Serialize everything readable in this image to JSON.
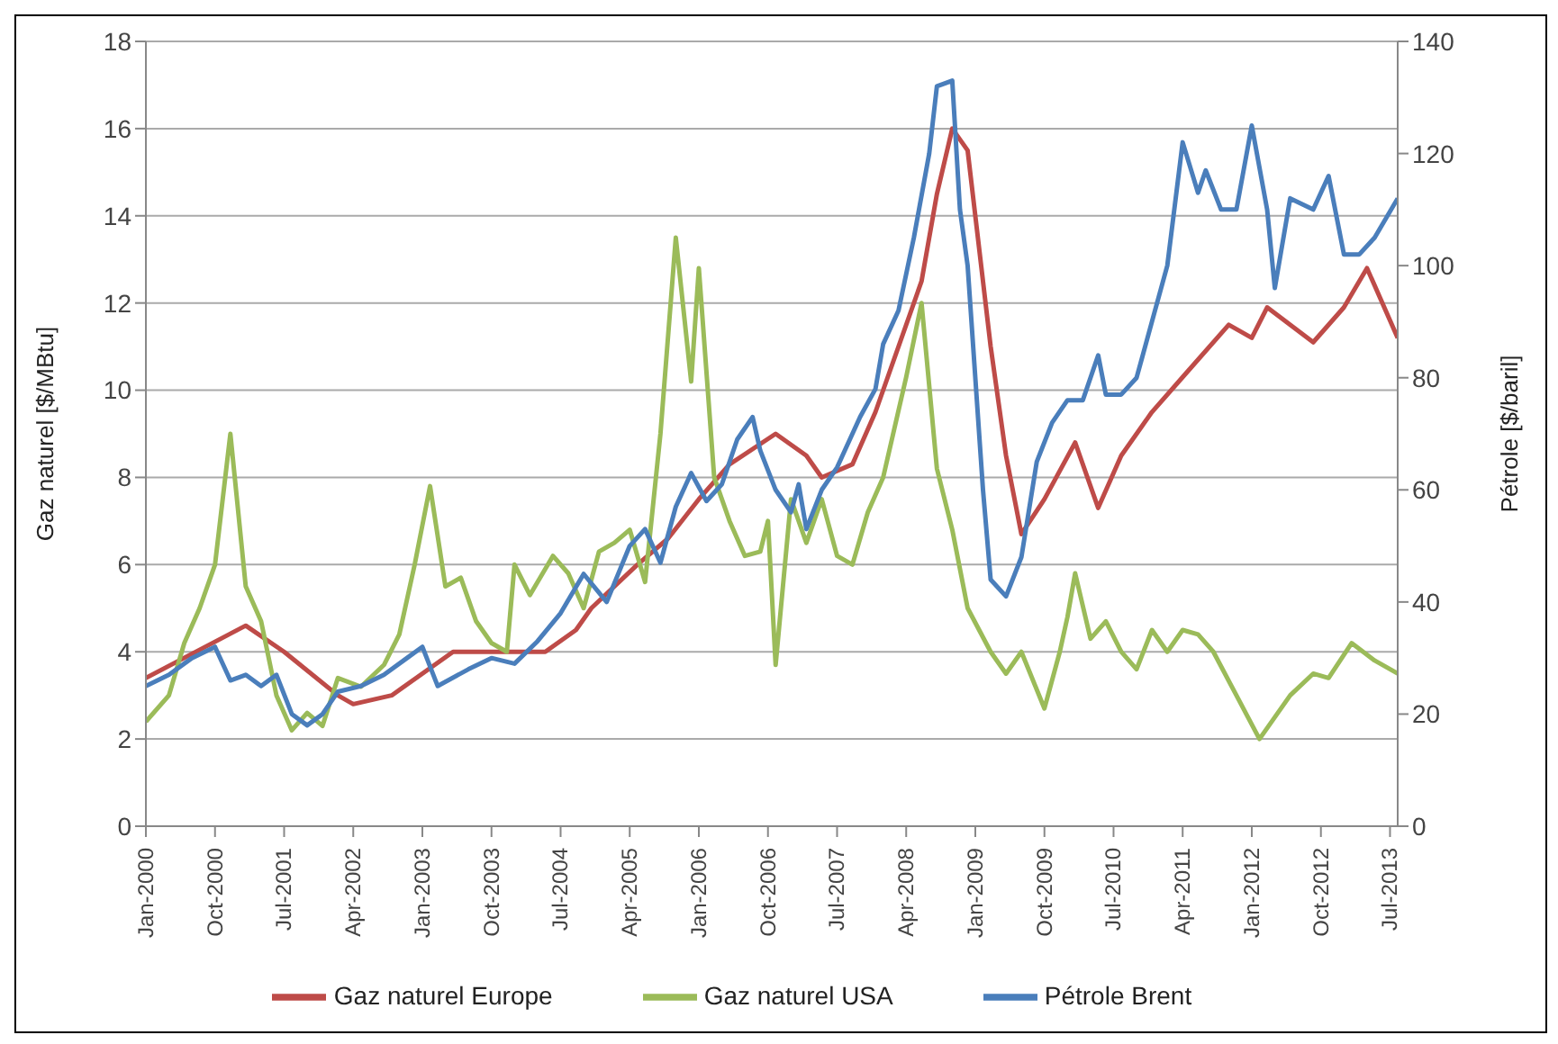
{
  "chart_data": {
    "type": "line",
    "ylabel": "Gaz naturel [$/MBtu]",
    "y2label": "Pétrole [$/baril]",
    "xlim": [
      "2000-01",
      "2013-08"
    ],
    "xticks": [
      {
        "value": "2000-01",
        "label": "Jan-2000"
      },
      {
        "value": "2000-10",
        "label": "Oct-2000"
      },
      {
        "value": "2001-07",
        "label": "Jul-2001"
      },
      {
        "value": "2002-04",
        "label": "Apr-2002"
      },
      {
        "value": "2003-01",
        "label": "Jan-2003"
      },
      {
        "value": "2003-10",
        "label": "Oct-2003"
      },
      {
        "value": "2004-07",
        "label": "Jul-2004"
      },
      {
        "value": "2005-04",
        "label": "Apr-2005"
      },
      {
        "value": "2006-01",
        "label": "Jan-2006"
      },
      {
        "value": "2006-10",
        "label": "Oct-2006"
      },
      {
        "value": "2007-07",
        "label": "Jul-2007"
      },
      {
        "value": "2008-04",
        "label": "Apr-2008"
      },
      {
        "value": "2009-01",
        "label": "Jan-2009"
      },
      {
        "value": "2009-10",
        "label": "Oct-2009"
      },
      {
        "value": "2010-07",
        "label": "Jul-2010"
      },
      {
        "value": "2011-04",
        "label": "Apr-2011"
      },
      {
        "value": "2012-01",
        "label": "Jan-2012"
      },
      {
        "value": "2012-10",
        "label": "Oct-2012"
      },
      {
        "value": "2013-07",
        "label": "Jul-2013"
      }
    ],
    "ylim": [
      0,
      18
    ],
    "yticks": [
      0,
      2,
      4,
      6,
      8,
      10,
      12,
      14,
      16,
      18
    ],
    "y2lim": [
      0,
      140
    ],
    "y2ticks": [
      0,
      20,
      40,
      60,
      80,
      100,
      120,
      140
    ],
    "grid": "y",
    "legend": "bottom",
    "marker": "none",
    "line_style": "solid",
    "series": [
      {
        "name": "Gaz naturel Europe",
        "color": "#be4b48",
        "x": [
          "2000-01",
          "2001-02",
          "2001-07",
          "2002-02",
          "2002-04",
          "2002-09",
          "2003-05",
          "2004-05",
          "2004-09",
          "2004-11",
          "2005-05",
          "2005-09",
          "2006-01",
          "2006-05",
          "2006-11",
          "2007-03",
          "2007-05",
          "2007-09",
          "2007-12",
          "2008-06",
          "2008-08",
          "2008-10",
          "2008-12",
          "2009-03",
          "2009-05",
          "2009-07",
          "2009-10",
          "2010-02",
          "2010-05",
          "2010-08",
          "2010-12",
          "2011-04",
          "2011-10",
          "2012-01",
          "2012-03",
          "2012-09",
          "2013-01",
          "2013-04",
          "2013-08"
        ],
        "values": [
          3.4,
          4.6,
          4.0,
          3.0,
          2.8,
          3.0,
          4.0,
          4.0,
          4.5,
          5.0,
          6.0,
          6.6,
          7.5,
          8.3,
          9.0,
          8.5,
          8.0,
          8.3,
          9.5,
          12.5,
          14.5,
          16.0,
          15.5,
          11.0,
          8.5,
          6.7,
          7.5,
          8.8,
          7.3,
          8.5,
          9.5,
          10.3,
          11.5,
          11.2,
          11.9,
          11.1,
          11.9,
          12.8,
          11.2
        ]
      },
      {
        "name": "Gaz naturel USA",
        "color": "#9bbb59",
        "x": [
          "2000-01",
          "2000-04",
          "2000-06",
          "2000-08",
          "2000-10",
          "2000-12",
          "2001-02",
          "2001-04",
          "2001-06",
          "2001-08",
          "2001-10",
          "2001-12",
          "2002-02",
          "2002-05",
          "2002-08",
          "2002-10",
          "2002-12",
          "2003-02",
          "2003-04",
          "2003-06",
          "2003-08",
          "2003-10",
          "2003-12",
          "2004-01",
          "2004-03",
          "2004-06",
          "2004-08",
          "2004-10",
          "2004-12",
          "2005-02",
          "2005-04",
          "2005-06",
          "2005-08",
          "2005-10",
          "2005-12",
          "2006-01",
          "2006-03",
          "2006-05",
          "2006-07",
          "2006-09",
          "2006-10",
          "2006-11",
          "2007-01",
          "2007-03",
          "2007-05",
          "2007-07",
          "2007-09",
          "2007-11",
          "2008-01",
          "2008-04",
          "2008-06",
          "2008-08",
          "2008-10",
          "2008-12",
          "2009-03",
          "2009-05",
          "2009-07",
          "2009-10",
          "2009-12",
          "2010-01",
          "2010-02",
          "2010-04",
          "2010-06",
          "2010-08",
          "2010-10",
          "2010-12",
          "2011-02",
          "2011-04",
          "2011-06",
          "2011-08",
          "2011-11",
          "2012-02",
          "2012-04",
          "2012-06",
          "2012-09",
          "2012-11",
          "2013-02",
          "2013-05",
          "2013-08"
        ],
        "values": [
          2.4,
          3.0,
          4.2,
          5.0,
          6.0,
          9.0,
          5.5,
          4.7,
          3.0,
          2.2,
          2.6,
          2.3,
          3.4,
          3.2,
          3.7,
          4.4,
          6.0,
          7.8,
          5.5,
          5.7,
          4.7,
          4.2,
          4.0,
          6.0,
          5.3,
          6.2,
          5.8,
          5.0,
          6.3,
          6.5,
          6.8,
          5.6,
          9.0,
          13.5,
          10.2,
          12.8,
          8.0,
          7.0,
          6.2,
          6.3,
          7.0,
          3.7,
          7.5,
          6.5,
          7.5,
          6.2,
          6.0,
          7.2,
          8.0,
          10.3,
          12.0,
          8.2,
          6.8,
          5.0,
          4.0,
          3.5,
          4.0,
          2.7,
          4.0,
          4.8,
          5.8,
          4.3,
          4.7,
          4.0,
          3.6,
          4.5,
          4.0,
          4.5,
          4.4,
          4.0,
          3.0,
          2.0,
          2.5,
          3.0,
          3.5,
          3.4,
          4.2,
          3.8,
          3.5
        ]
      },
      {
        "name": "Pétrole Brent",
        "color": "#4a7ebb",
        "axis": "y2",
        "x": [
          "2000-01",
          "2000-04",
          "2000-07",
          "2000-10",
          "2000-12",
          "2001-02",
          "2001-04",
          "2001-06",
          "2001-08",
          "2001-10",
          "2001-12",
          "2002-02",
          "2002-05",
          "2002-08",
          "2002-11",
          "2003-01",
          "2003-03",
          "2003-07",
          "2003-10",
          "2004-01",
          "2004-04",
          "2004-07",
          "2004-10",
          "2005-01",
          "2005-04",
          "2005-06",
          "2005-08",
          "2005-10",
          "2005-12",
          "2006-02",
          "2006-04",
          "2006-06",
          "2006-08",
          "2006-09",
          "2006-11",
          "2007-01",
          "2007-02",
          "2007-03",
          "2007-05",
          "2007-07",
          "2007-10",
          "2007-12",
          "2008-01",
          "2008-03",
          "2008-05",
          "2008-07",
          "2008-08",
          "2008-10",
          "2008-11",
          "2008-12",
          "2009-02",
          "2009-03",
          "2009-05",
          "2009-07",
          "2009-09",
          "2009-11",
          "2010-01",
          "2010-03",
          "2010-05",
          "2010-06",
          "2010-08",
          "2010-10",
          "2010-12",
          "2011-02",
          "2011-04",
          "2011-06",
          "2011-07",
          "2011-09",
          "2011-11",
          "2012-01",
          "2012-03",
          "2012-04",
          "2012-06",
          "2012-09",
          "2012-11",
          "2013-01",
          "2013-03",
          "2013-05",
          "2013-08"
        ],
        "values": [
          25,
          27,
          30,
          32,
          26,
          27,
          25,
          27,
          20,
          18,
          20,
          24,
          25,
          27,
          30,
          32,
          25,
          28,
          30,
          29,
          33,
          38,
          45,
          40,
          50,
          53,
          47,
          57,
          63,
          58,
          61,
          69,
          73,
          67,
          60,
          56,
          61,
          53,
          60,
          64,
          73,
          78,
          86,
          92,
          105,
          120,
          132,
          133,
          110,
          100,
          60,
          44,
          41,
          48,
          65,
          72,
          76,
          76,
          84,
          77,
          77,
          80,
          90,
          100,
          122,
          113,
          117,
          110,
          110,
          125,
          110,
          96,
          112,
          110,
          116,
          102,
          102,
          105,
          112
        ]
      }
    ]
  }
}
